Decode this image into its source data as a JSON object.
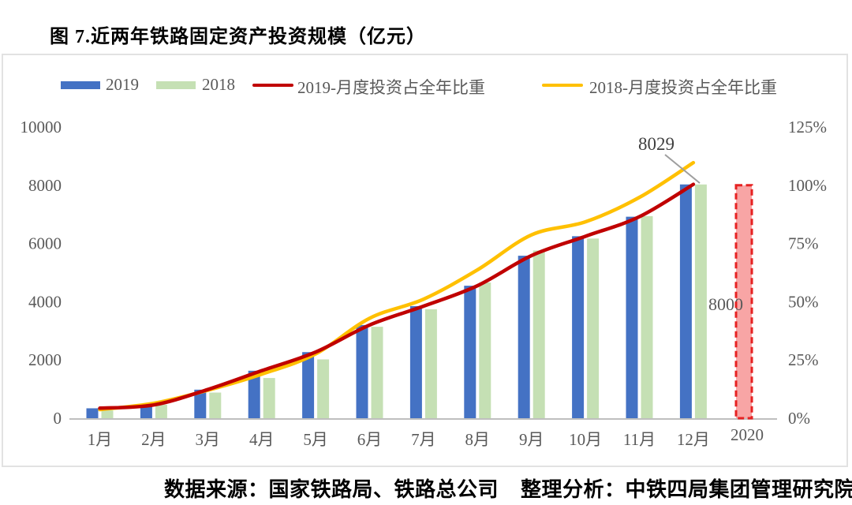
{
  "title": "图 7.近两年铁路固定资产投资规模（亿元）",
  "legend": [
    {
      "label": "2019",
      "type": "bar",
      "color": "#4472C4"
    },
    {
      "label": "2018",
      "type": "bar",
      "color": "#C5E0B4"
    },
    {
      "label": "2019-月度投资占全年比重",
      "type": "line",
      "color": "#C00000"
    },
    {
      "label": "2018-月度投资占全年比重",
      "type": "line",
      "color": "#FFC000"
    }
  ],
  "source": {
    "part1": "数据来源：国家铁路局、铁路总公司",
    "part2": "整理分析：中铁四局集团管理研究院"
  },
  "chart_data": {
    "type": "bar+line combo",
    "title": "图 7.近两年铁路固定资产投资规模（亿元）",
    "categories": [
      "1月",
      "2月",
      "3月",
      "4月",
      "5月",
      "6月",
      "7月",
      "8月",
      "9月",
      "10月",
      "11月",
      "12月"
    ],
    "forecast_category": "2020",
    "series": [
      {
        "name": "2019",
        "type": "bar",
        "axis": "left",
        "color": "#4472C4",
        "values": [
          340,
          455,
          980,
          1630,
          2270,
          3200,
          3850,
          4550,
          5580,
          6250,
          6920,
          8029
        ]
      },
      {
        "name": "2018",
        "type": "bar",
        "axis": "left",
        "color": "#C5E0B4",
        "values": [
          270,
          465,
          880,
          1380,
          2020,
          3140,
          3740,
          4660,
          5760,
          6170,
          6940,
          8028
        ]
      },
      {
        "name": "2019-月度投资占全年比重",
        "type": "line",
        "axis": "right",
        "color": "#C00000",
        "values_pct": [
          4.3,
          5.7,
          12.3,
          20.4,
          28.4,
          40.0,
          48.1,
          56.9,
          69.8,
          78.1,
          86.5,
          100.4
        ]
      },
      {
        "name": "2018-月度投资占全年比重",
        "type": "line",
        "axis": "right",
        "color": "#FFC000",
        "values_pct": [
          3.7,
          6.4,
          12.0,
          18.9,
          27.6,
          42.9,
          51.1,
          63.7,
          78.7,
          84.3,
          94.8,
          109.7
        ]
      }
    ],
    "forecast_2020": {
      "label": "2020",
      "value": 8000,
      "annotation": "8000",
      "fill": "#F8A5A5",
      "border": "#E62222"
    },
    "annotation_dec2019": {
      "text": "8029"
    },
    "left_axis": {
      "ticks": [
        0,
        2000,
        4000,
        6000,
        8000,
        10000
      ],
      "min": 0,
      "max": 10000
    },
    "right_axis": {
      "tick_labels": [
        "0%",
        "25%",
        "50%",
        "75%",
        "100%",
        "125%"
      ],
      "tick_values": [
        0,
        25,
        50,
        75,
        100,
        125
      ],
      "min_pct": 0,
      "max_pct": 125
    },
    "grid": "off",
    "legend_position": "top",
    "axis_text_color": "#595959",
    "axis_line_color": "#BFBFBF",
    "leader_line_color": "#9E9E9E"
  }
}
